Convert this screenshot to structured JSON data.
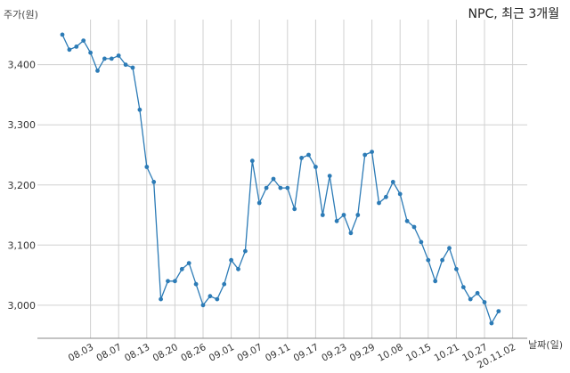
{
  "chart_data": {
    "type": "line",
    "title": "NPC, 최근 3개월",
    "ylabel": "주가(원)",
    "xlabel": "날짜(일)",
    "ylim": [
      2945,
      3475
    ],
    "yticks": [
      3000,
      3100,
      3200,
      3300,
      3400
    ],
    "ytick_labels": [
      "3,000",
      "3,100",
      "3,200",
      "3,300",
      "3,400"
    ],
    "grid": true,
    "line_color": "#2c7bb6",
    "xticks": [
      {
        "i": 4,
        "label": "08.03"
      },
      {
        "i": 8,
        "label": "08.07"
      },
      {
        "i": 12,
        "label": "08.13"
      },
      {
        "i": 16,
        "label": "08.20"
      },
      {
        "i": 20,
        "label": "08.26"
      },
      {
        "i": 24,
        "label": "09.01"
      },
      {
        "i": 28,
        "label": "09.07"
      },
      {
        "i": 32,
        "label": "09.11"
      },
      {
        "i": 36,
        "label": "09.17"
      },
      {
        "i": 40,
        "label": "09.23"
      },
      {
        "i": 44,
        "label": "09.29"
      },
      {
        "i": 48,
        "label": "10.08"
      },
      {
        "i": 52,
        "label": "10.15"
      },
      {
        "i": 56,
        "label": "10.21"
      },
      {
        "i": 60,
        "label": "10.27"
      },
      {
        "i": 64,
        "label": "20.11.02"
      }
    ],
    "values": [
      3450,
      3425,
      3430,
      3440,
      3420,
      3390,
      3410,
      3410,
      3415,
      3400,
      3395,
      3325,
      3230,
      3205,
      3010,
      3040,
      3040,
      3060,
      3070,
      3035,
      3000,
      3015,
      3010,
      3035,
      3075,
      3060,
      3090,
      3240,
      3170,
      3195,
      3210,
      3195,
      3195,
      3160,
      3245,
      3250,
      3230,
      3150,
      3215,
      3140,
      3150,
      3120,
      3150,
      3250,
      3255,
      3170,
      3180,
      3205,
      3185,
      3140,
      3130,
      3105,
      3075,
      3040,
      3075,
      3095,
      3060,
      3030,
      3010,
      3020,
      3005,
      2970,
      2990
    ]
  }
}
